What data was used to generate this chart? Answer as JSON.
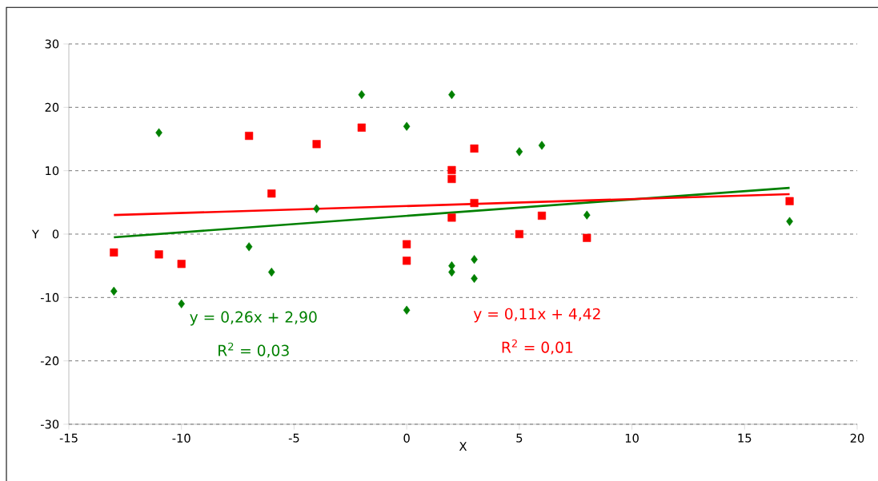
{
  "chart_data": {
    "type": "scatter",
    "xlabel": "X",
    "ylabel": "Y",
    "xlim": [
      -15,
      20
    ],
    "xticks": [
      -15,
      -10,
      -5,
      0,
      5,
      10,
      15,
      20
    ],
    "ylim": [
      -30,
      30
    ],
    "yticks": [
      -30,
      -20,
      -10,
      0,
      10,
      20,
      30
    ],
    "grid": "y",
    "series": [
      {
        "type": "scatter",
        "marker": "diamond",
        "color": "#008000",
        "x": [
          -13,
          -11,
          -10,
          -7,
          -6,
          -4,
          -2,
          0,
          0,
          2,
          2,
          2,
          3,
          3,
          5,
          6,
          8,
          17
        ],
        "values": [
          -9,
          16,
          -11,
          -2,
          -6,
          4,
          22,
          17,
          -12,
          22,
          -5,
          -6,
          -4,
          -7,
          13,
          14,
          3,
          2
        ]
      },
      {
        "type": "scatter",
        "marker": "square",
        "color": "#ff0000",
        "x": [
          -13,
          -11,
          -10,
          -7,
          -6,
          -4,
          -2,
          0,
          0,
          2,
          2,
          2,
          3,
          3,
          5,
          6,
          8,
          17
        ],
        "values": [
          -2.9,
          -3.2,
          -4.7,
          15.5,
          6.4,
          14.2,
          16.8,
          -1.6,
          -4.2,
          10.1,
          8.7,
          2.6,
          13.5,
          4.9,
          0,
          2.9,
          -0.6,
          5.2
        ]
      },
      {
        "type": "line",
        "marker": "none",
        "line_style": "solid",
        "color": "#008000",
        "x": [
          -13,
          17
        ],
        "values": [
          -0.5,
          7.3
        ]
      },
      {
        "type": "line",
        "marker": "none",
        "line_style": "solid",
        "color": "#ff0000",
        "x": [
          -13,
          17
        ],
        "values": [
          3.0,
          6.3
        ]
      }
    ],
    "annotations": [
      "y = 0,26x + 2,90",
      "R$^{2}$ = 0,03",
      "y = 0,11x + 4,42",
      "R$^{2}$ = 0,01"
    ]
  }
}
